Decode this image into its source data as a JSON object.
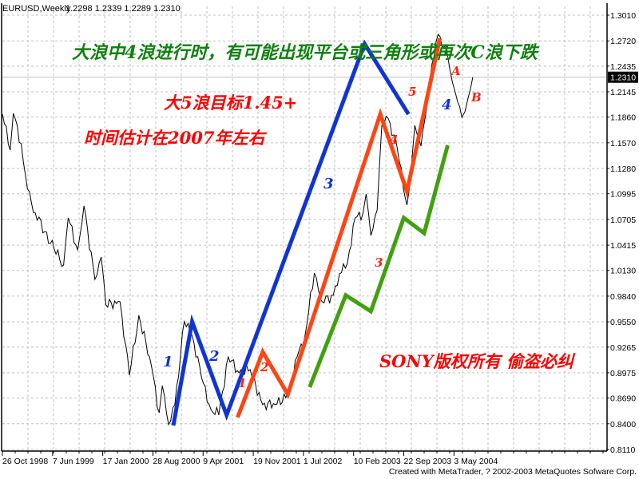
{
  "chart_data": {
    "type": "line",
    "title": "EURUSD,Weekly",
    "ohlc_readout": "1.2298 1.2339 1.2289 1.2310",
    "current_price": "1.2310",
    "grid": true,
    "ylim": [
      0.811,
      1.301
    ],
    "y_ticks": [
      "1.3010",
      "1.2720",
      "1.2435",
      "1.2145",
      "1.1860",
      "1.1570",
      "1.1280",
      "1.0995",
      "1.0705",
      "1.0415",
      "1.0130",
      "0.9840",
      "0.9550",
      "0.9265",
      "0.8975",
      "0.8690",
      "0.8400",
      "0.8110"
    ],
    "x_ticks": [
      {
        "label": "26 Oct 1998",
        "date": "1998-10-26"
      },
      {
        "label": "7 Jun 1999",
        "date": "1999-06-07"
      },
      {
        "label": "17 Jan 2000",
        "date": "2000-01-17"
      },
      {
        "label": "28 Aug 2000",
        "date": "2000-08-28"
      },
      {
        "label": "9 Apr 2001",
        "date": "2001-04-09"
      },
      {
        "label": "19 Nov 2001",
        "date": "2001-11-19"
      },
      {
        "label": "1 Jul 2002",
        "date": "2002-07-01"
      },
      {
        "label": "10 Feb 2003",
        "date": "2003-02-10"
      },
      {
        "label": "22 Sep 2003",
        "date": "2003-09-22"
      },
      {
        "label": "3 May 2004",
        "date": "2004-05-03"
      }
    ],
    "price": [
      [
        "1998-10-26",
        1.1893
      ],
      [
        "1998-11-30",
        1.1488
      ],
      [
        "1998-12-14",
        1.1902
      ],
      [
        "1999-01-18",
        1.156
      ],
      [
        "1999-02-15",
        1.1047
      ],
      [
        "1999-03-22",
        1.0777
      ],
      [
        "1999-05-03",
        1.0569
      ],
      [
        "1999-06-14",
        1.0371
      ],
      [
        "1999-07-26",
        1.0191
      ],
      [
        "1999-08-16",
        1.0723
      ],
      [
        "1999-09-27",
        1.0362
      ],
      [
        "1999-10-25",
        1.0858
      ],
      [
        "1999-12-13",
        1.0029
      ],
      [
        "2000-01-10",
        1.0281
      ],
      [
        "2000-01-31",
        0.9741
      ],
      [
        "2000-04-03",
        0.9777
      ],
      [
        "2000-05-15",
        0.8948
      ],
      [
        "2000-06-26",
        0.9624
      ],
      [
        "2000-08-21",
        0.9056
      ],
      [
        "2000-09-25",
        0.8525
      ],
      [
        "2000-10-09",
        0.8831
      ],
      [
        "2000-11-06",
        0.839
      ],
      [
        "2000-12-04",
        0.8615
      ],
      [
        "2001-01-15",
        0.9552
      ],
      [
        "2001-02-19",
        0.9399
      ],
      [
        "2001-04-02",
        0.8921
      ],
      [
        "2001-05-14",
        0.8561
      ],
      [
        "2001-06-18",
        0.8498
      ],
      [
        "2001-07-30",
        0.9155
      ],
      [
        "2001-09-17",
        0.8975
      ],
      [
        "2001-11-05",
        0.9011
      ],
      [
        "2001-12-31",
        0.8615
      ],
      [
        "2002-02-25",
        0.8615
      ],
      [
        "2002-04-29",
        0.8741
      ],
      [
        "2002-06-03",
        0.9155
      ],
      [
        "2002-07-08",
        0.9399
      ],
      [
        "2002-08-19",
        1.0101
      ],
      [
        "2002-09-23",
        0.9777
      ],
      [
        "2002-11-11",
        0.9849
      ],
      [
        "2002-12-09",
        1.0092
      ],
      [
        "2003-01-13",
        1.0209
      ],
      [
        "2003-02-17",
        1.0723
      ],
      [
        "2003-03-24",
        1.0777
      ],
      [
        "2003-04-07",
        1.0993
      ],
      [
        "2003-04-28",
        1.0524
      ],
      [
        "2003-05-26",
        1.0813
      ],
      [
        "2003-06-16",
        1.1767
      ],
      [
        "2003-07-14",
        1.1848
      ],
      [
        "2003-08-25",
        1.1488
      ],
      [
        "2003-10-06",
        1.0867
      ],
      [
        "2003-10-20",
        1.111
      ],
      [
        "2003-11-10",
        1.1767
      ],
      [
        "2003-12-08",
        1.1533
      ],
      [
        "2004-01-26",
        1.2461
      ],
      [
        "2004-02-23",
        1.2794
      ],
      [
        "2004-04-05",
        1.2551
      ],
      [
        "2004-04-26",
        1.2254
      ],
      [
        "2004-05-10",
        1.2127
      ],
      [
        "2004-06-07",
        1.1857
      ],
      [
        "2004-06-21",
        1.192
      ],
      [
        "2004-07-05",
        1.2073
      ],
      [
        "2004-07-26",
        1.231
      ]
    ],
    "wave_lines": [
      {
        "color": "#1034d4",
        "points": [
          [
            "2000-11-27",
            0.8381
          ],
          [
            "2001-02-19",
            0.9552
          ],
          [
            "2001-07-23",
            0.8498
          ],
          [
            "2003-03-31",
            1.2686
          ],
          [
            "2003-10-13",
            1.1893
          ]
        ]
      },
      {
        "color": "#ff4514",
        "points": [
          [
            "2001-09-10",
            0.8471
          ],
          [
            "2001-12-31",
            0.921
          ],
          [
            "2002-04-22",
            0.8732
          ],
          [
            "2003-06-09",
            1.1893
          ],
          [
            "2003-10-06",
            1.102
          ],
          [
            "2004-03-01",
            1.2749
          ]
        ]
      },
      {
        "color": "#42a010",
        "points": [
          [
            "2002-07-29",
            0.8813
          ],
          [
            "2003-01-06",
            0.9849
          ],
          [
            "2003-04-28",
            0.9669
          ],
          [
            "2003-09-22",
            1.0723
          ],
          [
            "2003-12-22",
            1.0551
          ],
          [
            "2004-04-05",
            1.1542
          ]
        ]
      }
    ],
    "annotations": {
      "headline": "大浪中4浪进行时，有可能出现平台或三角形或再次C浪下跌",
      "target": "大5浪目标1.45+",
      "time_estimate": "时间估计在2007年左右",
      "copyright": "SONY版权所有  偷盗必纠"
    },
    "wave_labels": {
      "blue": [
        "1",
        "2",
        "3",
        "4"
      ],
      "red": [
        "1",
        "2",
        "3",
        "4",
        "5",
        "A",
        "B"
      ]
    },
    "colors": {
      "headline": "#108010",
      "red_text": "#ff0000",
      "blue_label": "#1034d4",
      "grid": "#c0c0c0"
    }
  },
  "footer": "Created with MetaTrader, ? 2002-2003 MetaQuotes Sofware Corp."
}
